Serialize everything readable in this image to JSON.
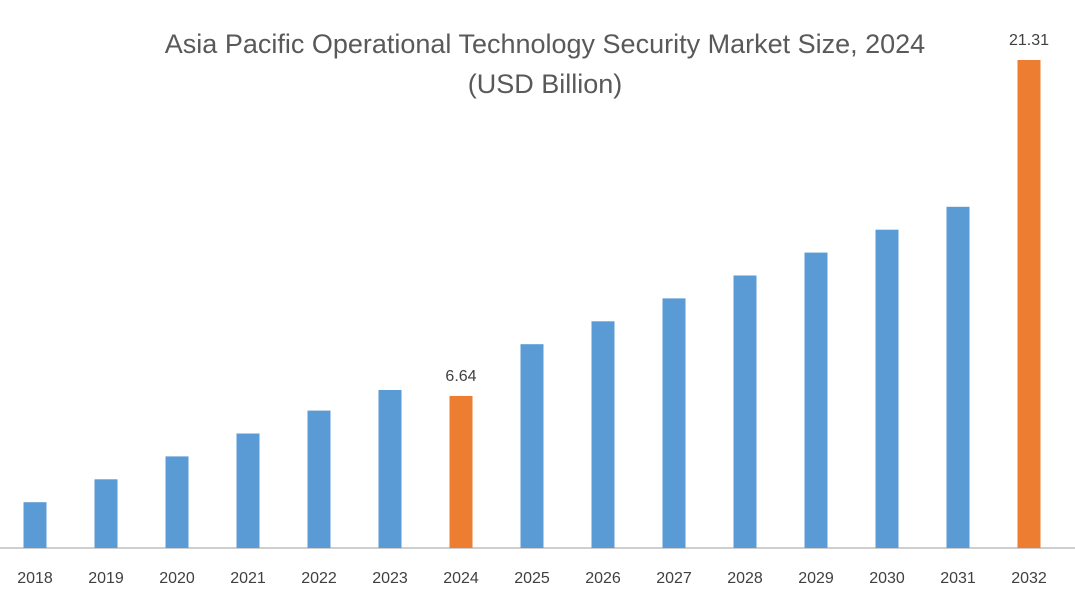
{
  "chart_data": {
    "type": "bar",
    "title_line1": "Asia Pacific Operational Technology Security Market Size, 2024",
    "title_line2": "(USD Billion)",
    "categories": [
      "2018",
      "2019",
      "2020",
      "2021",
      "2022",
      "2023",
      "2024",
      "2025",
      "2026",
      "2027",
      "2028",
      "2029",
      "2030",
      "2031",
      "2032"
    ],
    "values": [
      2.0,
      3.0,
      4.0,
      5.0,
      6.0,
      6.9,
      6.64,
      8.9,
      9.9,
      10.9,
      11.9,
      12.9,
      13.9,
      14.9,
      21.31
    ],
    "highlight_indices": [
      6,
      14
    ],
    "data_labels": {
      "6": "6.64",
      "14": "21.31"
    },
    "colors": {
      "base": "#5b9bd5",
      "highlight": "#ed7d31",
      "axis": "#bfbfbf"
    },
    "xlabel": "",
    "ylabel": "",
    "grid": false,
    "legend": "none"
  }
}
